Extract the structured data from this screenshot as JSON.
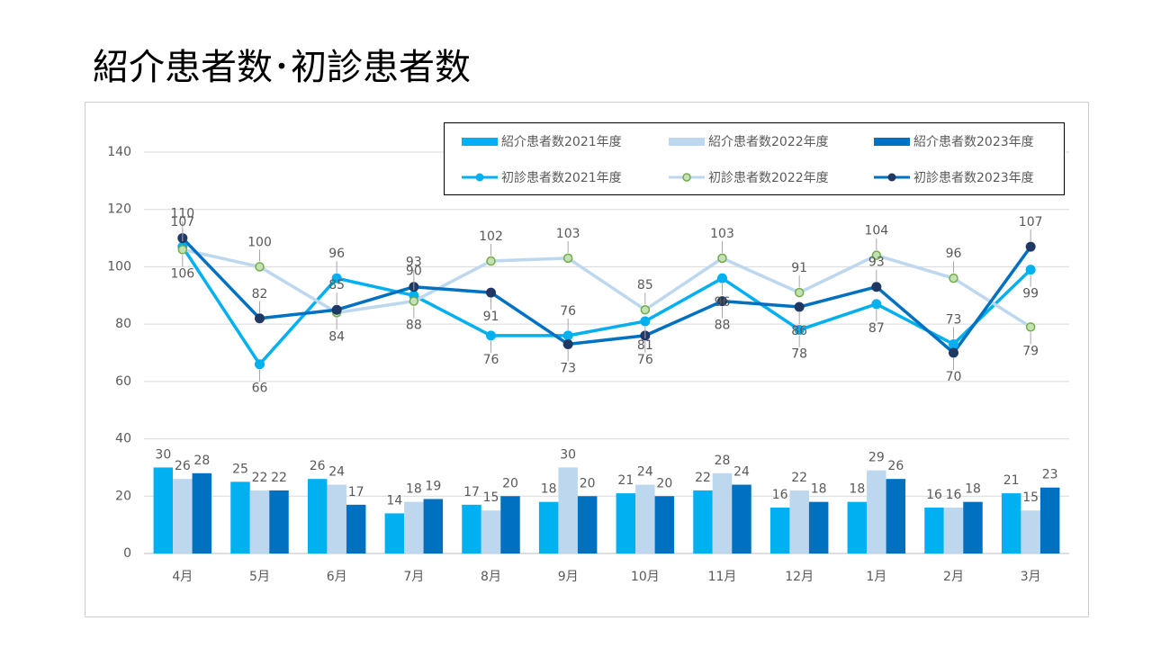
{
  "slide": {
    "title": "紹介患者数･初診患者数"
  },
  "chart_data": {
    "type": "bar+line",
    "categories": [
      "4月",
      "5月",
      "6月",
      "7月",
      "8月",
      "9月",
      "10月",
      "11月",
      "12月",
      "1月",
      "2月",
      "3月"
    ],
    "ylim": [
      0,
      140
    ],
    "yticks": [
      0,
      20,
      40,
      60,
      80,
      100,
      120,
      140
    ],
    "grid": true,
    "legend_position": "top-right",
    "bar_series": [
      {
        "name": "紹介患者数2021年度",
        "color": "#00B0F0",
        "values": [
          30,
          25,
          26,
          14,
          17,
          18,
          21,
          22,
          16,
          18,
          16,
          21
        ]
      },
      {
        "name": "紹介患者数2022年度",
        "color": "#BDD7EE",
        "values": [
          26,
          22,
          24,
          18,
          15,
          30,
          24,
          28,
          22,
          29,
          16,
          15
        ]
      },
      {
        "name": "紹介患者数2023年度",
        "color": "#0070C0",
        "values": [
          28,
          22,
          17,
          19,
          20,
          20,
          20,
          24,
          18,
          26,
          18,
          23
        ]
      }
    ],
    "line_series": [
      {
        "name": "初診患者数2021年度",
        "color": "#00B0F0",
        "marker_fill": "#00B0F0",
        "marker_stroke": "#00B0F0",
        "values": [
          107,
          66,
          96,
          90,
          76,
          76,
          81,
          96,
          78,
          87,
          73,
          99
        ]
      },
      {
        "name": "初診患者数2022年度",
        "color": "#BDD7EE",
        "marker_fill": "#C5E0B4",
        "marker_stroke": "#70AD47",
        "values": [
          106,
          100,
          84,
          88,
          102,
          103,
          85,
          103,
          91,
          104,
          96,
          79
        ]
      },
      {
        "name": "初診患者数2023年度",
        "color": "#0070C0",
        "marker_fill": "#203864",
        "marker_stroke": "#203864",
        "values": [
          110,
          82,
          85,
          93,
          91,
          73,
          76,
          88,
          86,
          93,
          70,
          107
        ]
      }
    ]
  }
}
